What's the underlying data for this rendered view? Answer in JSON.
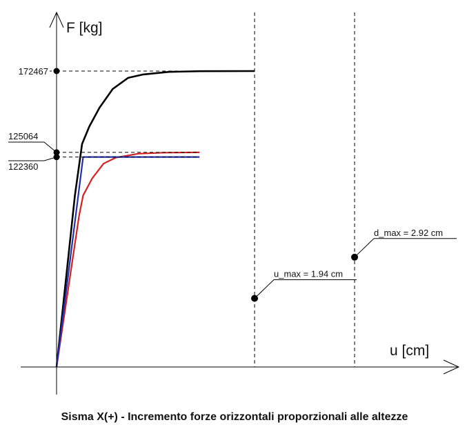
{
  "chart_data": {
    "type": "line",
    "title": "Sisma X(+) - Incremento forze orizzontali proporzionali alle altezze",
    "xlabel": "u [cm]",
    "ylabel": "F [kg]",
    "xlim": [
      0,
      4.15
    ],
    "ylim": [
      0,
      196000
    ],
    "grid": false,
    "y_ticks": [
      172467,
      125064,
      122360
    ],
    "series": [
      {
        "color": "#000000",
        "x": [
          0,
          0.18,
          0.25,
          0.32,
          0.42,
          0.55,
          0.7,
          0.85,
          1.1,
          1.4,
          1.94
        ],
        "y": [
          0,
          100000,
          130000,
          140000,
          151000,
          162000,
          168500,
          170500,
          172000,
          172400,
          172467
        ]
      },
      {
        "color": "#d42020",
        "x": [
          0,
          0.22,
          0.26,
          0.35,
          0.46,
          0.58,
          0.8,
          1.05,
          1.4
        ],
        "y": [
          0,
          88000,
          100000,
          110000,
          118500,
          122000,
          124300,
          124900,
          125064
        ]
      },
      {
        "color": "#1f2fb0",
        "x": [
          0,
          0.26,
          1.4
        ],
        "y": [
          0,
          122360,
          122360
        ]
      }
    ],
    "markers": [
      {
        "label": "u_max = 1.94 cm",
        "x": 1.94,
        "y": 40000
      },
      {
        "label": "d_max = 2.92 cm",
        "x": 2.92,
        "y": 64000
      }
    ],
    "vertical_lines_x": [
      1.94,
      2.92
    ]
  }
}
